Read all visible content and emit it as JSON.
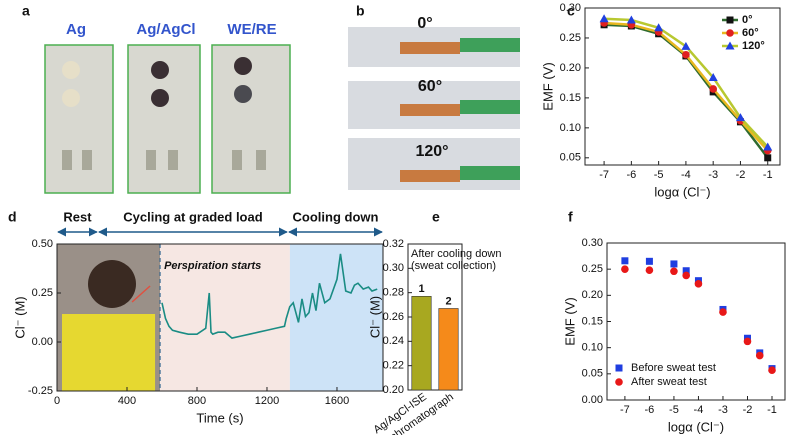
{
  "panels": {
    "a": {
      "label": "a",
      "electrodes": [
        "Ag",
        "Ag/AgCl",
        "WE/RE"
      ]
    },
    "b": {
      "label": "b",
      "angles": [
        "0°",
        "60°",
        "120°"
      ]
    }
  },
  "chart_data": [
    {
      "type": "line",
      "panel": "c",
      "xlabel": "logα (Cl⁻)",
      "ylabel": "EMF (V)",
      "x": [
        -7,
        -6,
        -5,
        -4,
        -3,
        -2,
        -1
      ],
      "xlim": [
        -7.7,
        -0.55
      ],
      "xticks": [
        -7,
        -6,
        -5,
        -4,
        -3,
        -2,
        -1
      ],
      "ylim": [
        0.038,
        0.3
      ],
      "yticks": [
        0.05,
        {
          "value": 0.1,
          "label": "0.10"
        },
        0.15,
        {
          "value": 0.2,
          "label": "0.20"
        },
        0.25,
        {
          "value": 0.3,
          "label": "0.30"
        }
      ],
      "legend": "top-right",
      "series": [
        {
          "name": "0°",
          "color": "#111111",
          "line_color": "#2f6b2f",
          "marker": "square",
          "values": [
            0.272,
            0.27,
            0.257,
            0.22,
            0.16,
            0.11,
            0.05
          ]
        },
        {
          "name": "60°",
          "color": "#e02020",
          "line_color": "#e8b820",
          "marker": "circle",
          "values": [
            0.275,
            0.272,
            0.26,
            0.222,
            0.165,
            0.112,
            0.062
          ]
        },
        {
          "name": "120°",
          "color": "#2040e0",
          "line_color": "#b8c830",
          "marker": "triangle",
          "values": [
            0.282,
            0.28,
            0.267,
            0.236,
            0.184,
            0.117,
            0.068
          ]
        }
      ]
    },
    {
      "type": "line",
      "panel": "d",
      "xlabel": "Time (s)",
      "ylabel": "Cl⁻ (M)",
      "xlim": [
        0,
        1863
      ],
      "xticks": [
        0,
        400,
        800,
        1200,
        1600
      ],
      "ylim": [
        -0.25,
        0.5
      ],
      "yticks": [
        -0.25,
        {
          "value": 0,
          "label": "0.00"
        },
        0.25,
        {
          "value": 0.5,
          "label": "0.50"
        }
      ],
      "phases": [
        {
          "name": "Rest",
          "start": 0,
          "end": 234
        },
        {
          "name": "Cycling at graded load",
          "start": 234,
          "end": 1320
        },
        {
          "name": "Cooling down",
          "start": 1320,
          "end": 1863
        }
      ],
      "shading": [
        {
          "start": 589,
          "end": 1331,
          "color": "#f6e7e3"
        },
        {
          "start": 1331,
          "end": 1863,
          "color": "#cde3f7"
        }
      ],
      "annotation": "Perspiration starts",
      "x": [
        600,
        620,
        640,
        660,
        700,
        750,
        800,
        850,
        870,
        880,
        890,
        920,
        960,
        1000,
        1050,
        1100,
        1150,
        1200,
        1250,
        1300,
        1310,
        1330,
        1350,
        1380,
        1400,
        1420,
        1440,
        1460,
        1480,
        1500,
        1530,
        1560,
        1600,
        1620,
        1650,
        1680,
        1700,
        1720,
        1750,
        1780,
        1800,
        1830
      ],
      "series": [
        {
          "name": "Cl⁻",
          "color": "#1a8c84",
          "values": [
            0.2,
            0.12,
            0.08,
            0.06,
            0.05,
            0.04,
            0.04,
            0.07,
            0.25,
            0.05,
            0.04,
            0.05,
            0.05,
            0.02,
            0.03,
            0.04,
            0.05,
            0.06,
            0.07,
            0.08,
            0.12,
            0.18,
            0.2,
            0.1,
            0.22,
            0.13,
            0.15,
            0.25,
            0.16,
            0.3,
            0.2,
            0.22,
            0.32,
            0.45,
            0.26,
            0.25,
            0.29,
            0.3,
            0.27,
            0.28,
            0.26,
            0.27
          ]
        }
      ]
    },
    {
      "type": "bar",
      "panel": "e",
      "ylabel": "Cl⁻ (M)",
      "annotation": [
        "After cooling down",
        "(sweat collection)"
      ],
      "categories": [
        "Ag/AgCl-ISE",
        "Ion chromatograph"
      ],
      "values": [
        0.277,
        0.267
      ],
      "colors": [
        "#a8a820",
        "#f58a1a"
      ],
      "bar_labels": [
        "1",
        "2"
      ],
      "ylim": [
        0.2,
        0.32
      ],
      "yticks": [
        {
          "value": 0.2,
          "label": "0.20"
        },
        0.22,
        0.24,
        0.26,
        0.28,
        {
          "value": 0.3,
          "label": "0.30"
        },
        0.32
      ]
    },
    {
      "type": "scatter",
      "panel": "f",
      "xlabel": "logα (Cl⁻)",
      "ylabel": "EMF (V)",
      "legend": "bottom-left",
      "x": [
        -7,
        -6,
        -5,
        -4.5,
        -4,
        -3,
        -2,
        -1.5,
        -1
      ],
      "xlim": [
        -7.73,
        -0.47
      ],
      "xticks": [
        -7,
        -6,
        -5,
        -4,
        -3,
        -2,
        -1
      ],
      "ylim": [
        0,
        0.3
      ],
      "yticks": [
        {
          "value": 0,
          "label": "0.00"
        },
        0.05,
        {
          "value": 0.1,
          "label": "0.10"
        },
        0.15,
        {
          "value": 0.2,
          "label": "0.20"
        },
        0.25,
        {
          "value": 0.3,
          "label": "0.30"
        }
      ],
      "series": [
        {
          "name": "Before sweat test",
          "color": "#1f3ee0",
          "marker": "square",
          "values": [
            0.266,
            0.265,
            0.26,
            0.247,
            0.228,
            0.173,
            0.118,
            0.09,
            0.06
          ]
        },
        {
          "name": "After sweat test",
          "color": "#e81818",
          "marker": "circle",
          "values": [
            0.25,
            0.248,
            0.246,
            0.238,
            0.222,
            0.168,
            0.112,
            0.085,
            0.057
          ]
        }
      ]
    }
  ]
}
